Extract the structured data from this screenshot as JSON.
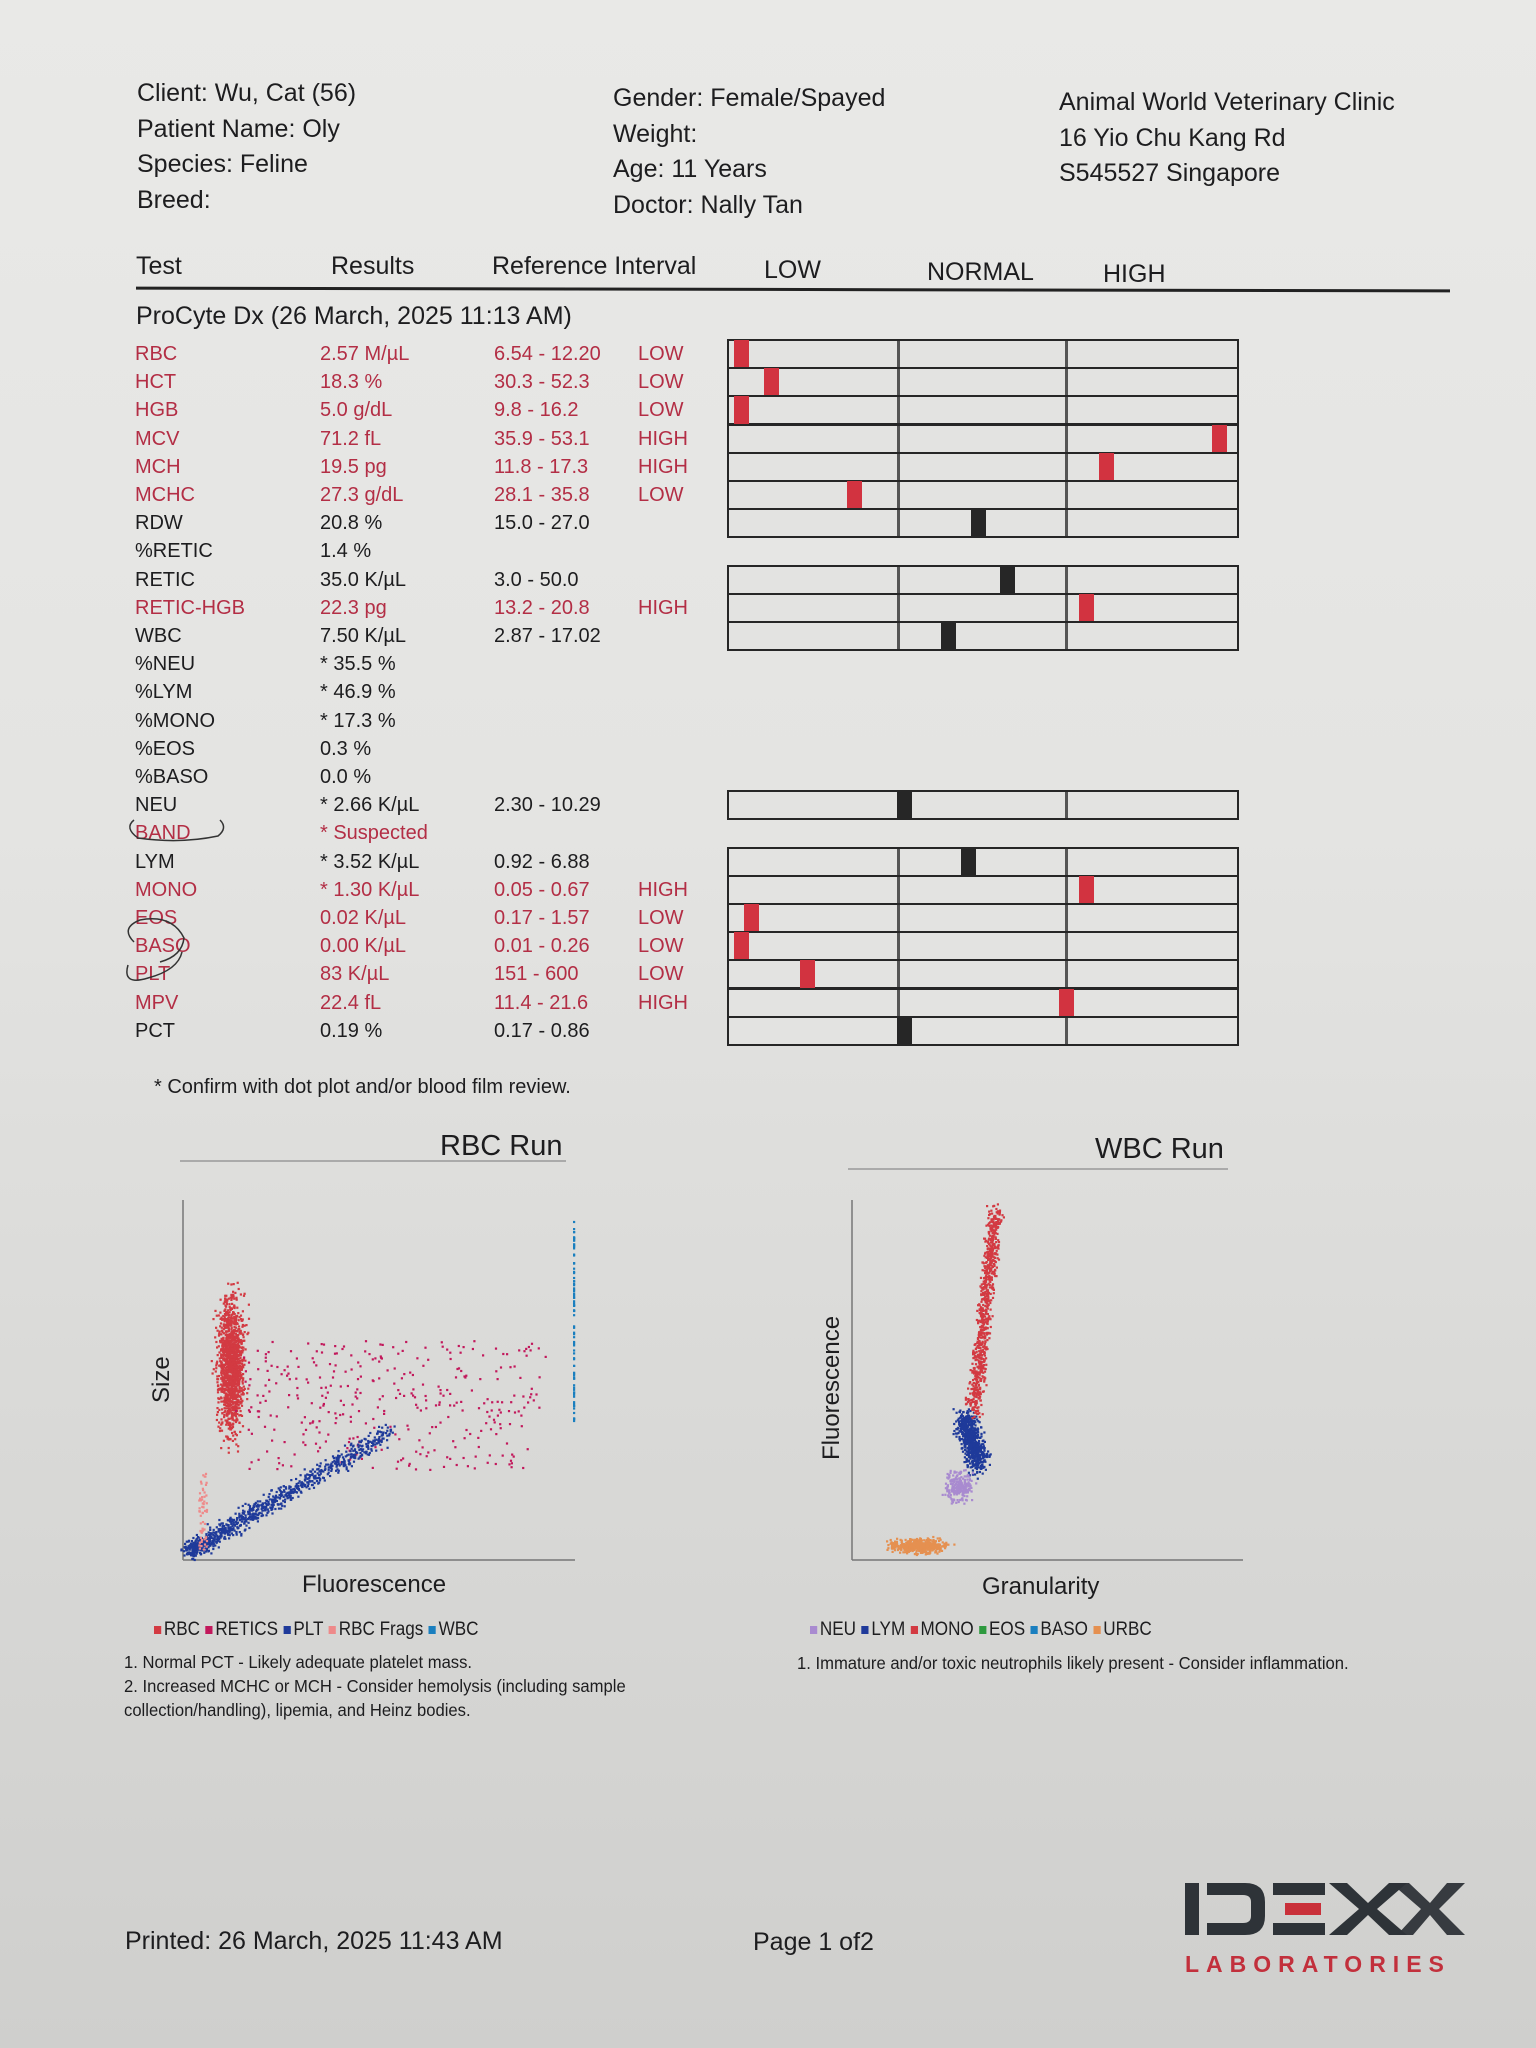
{
  "patient": {
    "client": "Client: Wu, Cat (56)",
    "patient_name": "Patient Name: Oly",
    "species": "Species: Feline",
    "breed": "Breed:",
    "gender": "Gender: Female/Spayed",
    "weight": "Weight:",
    "age": "Age: 11 Years",
    "doctor": "Doctor: Nally Tan"
  },
  "clinic": {
    "name": "Animal World Veterinary Clinic",
    "address1": "16 Yio Chu Kang Rd",
    "address2": "S545527 Singapore"
  },
  "table_header": {
    "test": "Test",
    "results": "Results",
    "reference": "Reference Interval",
    "low": "LOW",
    "normal": "NORMAL",
    "high": "HIGH"
  },
  "section_title": "ProCyte Dx (26 March, 2025 11:13 AM)",
  "colors": {
    "abnormal": "#b32e45",
    "marker_abnormal": "#d23340",
    "marker_normal": "#262626"
  },
  "rows": [
    {
      "test": "RBC",
      "result": "2.57 M/µL",
      "ref": "6.54 - 12.20",
      "flag": "LOW",
      "abnormal": true,
      "marker": 0.01
    },
    {
      "test": "HCT",
      "result": "18.3 %",
      "ref": "30.3 - 52.3",
      "flag": "LOW",
      "abnormal": true,
      "marker": 0.07
    },
    {
      "test": "HGB",
      "result": "5.0 g/dL",
      "ref": "9.8 - 16.2",
      "flag": "LOW",
      "abnormal": true,
      "marker": 0.01
    },
    {
      "test": "MCV",
      "result": "71.2 fL",
      "ref": "35.9 - 53.1",
      "flag": "HIGH",
      "abnormal": true,
      "marker": 0.98
    },
    {
      "test": "MCH",
      "result": "19.5 pg",
      "ref": "11.8 - 17.3",
      "flag": "HIGH",
      "abnormal": true,
      "marker": 0.75
    },
    {
      "test": "MCHC",
      "result": "27.3 g/dL",
      "ref": "28.1 - 35.8",
      "flag": "LOW",
      "abnormal": true,
      "marker": 0.24
    },
    {
      "test": "RDW",
      "result": "20.8 %",
      "ref": "15.0 - 27.0",
      "flag": "",
      "abnormal": false,
      "marker": 0.49
    },
    {
      "test": "%RETIC",
      "result": "1.4 %",
      "ref": "",
      "flag": "",
      "abnormal": false,
      "marker": null
    },
    {
      "test": "RETIC",
      "result": "35.0 K/µL",
      "ref": "3.0 - 50.0",
      "flag": "",
      "abnormal": false,
      "marker": 0.55
    },
    {
      "test": "RETIC-HGB",
      "result": "22.3 pg",
      "ref": "13.2 - 20.8",
      "flag": "HIGH",
      "abnormal": true,
      "marker": 0.71
    },
    {
      "test": "WBC",
      "result": "7.50 K/µL",
      "ref": "2.87 - 17.02",
      "flag": "",
      "abnormal": false,
      "marker": 0.43
    },
    {
      "test": "%NEU",
      "result": "* 35.5 %",
      "ref": "",
      "flag": "",
      "abnormal": false,
      "marker": null
    },
    {
      "test": "%LYM",
      "result": "* 46.9 %",
      "ref": "",
      "flag": "",
      "abnormal": false,
      "marker": null
    },
    {
      "test": "%MONO",
      "result": "* 17.3 %",
      "ref": "",
      "flag": "",
      "abnormal": false,
      "marker": null
    },
    {
      "test": "%EOS",
      "result": "0.3 %",
      "ref": "",
      "flag": "",
      "abnormal": false,
      "marker": null
    },
    {
      "test": "%BASO",
      "result": "0.0 %",
      "ref": "",
      "flag": "",
      "abnormal": false,
      "marker": null
    },
    {
      "test": "NEU",
      "result": "* 2.66 K/µL",
      "ref": "2.30 - 10.29",
      "flag": "",
      "abnormal": false,
      "marker": 0.34
    },
    {
      "test": "BAND",
      "result": "* Suspected",
      "ref": "",
      "flag": "",
      "abnormal": true,
      "marker": null
    },
    {
      "test": "LYM",
      "result": "* 3.52 K/µL",
      "ref": "0.92 - 6.88",
      "flag": "",
      "abnormal": false,
      "marker": 0.47
    },
    {
      "test": "MONO",
      "result": "* 1.30 K/µL",
      "ref": "0.05 - 0.67",
      "flag": "HIGH",
      "abnormal": true,
      "marker": 0.71
    },
    {
      "test": "EOS",
      "result": "0.02 K/µL",
      "ref": "0.17 - 1.57",
      "flag": "LOW",
      "abnormal": true,
      "marker": 0.03
    },
    {
      "test": "BASO",
      "result": "0.00 K/µL",
      "ref": "0.01 - 0.26",
      "flag": "LOW",
      "abnormal": true,
      "marker": 0.01
    },
    {
      "test": "PLT",
      "result": "83 K/µL",
      "ref": "151 - 600",
      "flag": "LOW",
      "abnormal": true,
      "marker": 0.145
    },
    {
      "test": "MPV",
      "result": "22.4 fL",
      "ref": "11.4 - 21.6",
      "flag": "HIGH",
      "abnormal": true,
      "marker": 0.67
    },
    {
      "test": "PCT",
      "result": "0.19 %",
      "ref": "0.17 - 0.86",
      "flag": "",
      "abnormal": false,
      "marker": 0.34
    }
  ],
  "footnote": "* Confirm with dot plot and/or blood film review.",
  "rbc_run": {
    "title": "RBC Run",
    "xlabel": "Fluorescence",
    "ylabel": "Size",
    "legend": [
      {
        "label": "RBC",
        "color": "#d33a42"
      },
      {
        "label": "RETICS",
        "color": "#c2185b"
      },
      {
        "label": "PLT",
        "color": "#1f3a9a"
      },
      {
        "label": "RBC Frags",
        "color": "#ee8a8a"
      },
      {
        "label": "WBC",
        "color": "#1a7fbf"
      }
    ],
    "notes": [
      "1. Normal PCT - Likely adequate platelet mass.",
      "2. Increased MCHC or MCH - Consider hemolysis (including sample",
      "collection/handling), lipemia, and Heinz bodies."
    ]
  },
  "wbc_run": {
    "title": "WBC Run",
    "xlabel": "Granularity",
    "ylabel": "Fluorescence",
    "legend": [
      {
        "label": "NEU",
        "color": "#a98bd0"
      },
      {
        "label": "LYM",
        "color": "#1f3a9a"
      },
      {
        "label": "MONO",
        "color": "#d33a42"
      },
      {
        "label": "EOS",
        "color": "#2e9a3e"
      },
      {
        "label": "BASO",
        "color": "#1a7fbf"
      },
      {
        "label": "URBC",
        "color": "#e59050"
      }
    ],
    "notes": [
      "1. Immature and/or toxic neutrophils likely present - Consider inflammation."
    ]
  },
  "footer": {
    "printed": "Printed: 26 March, 2025 11:43 AM",
    "page": "Page 1 of2"
  },
  "logo": {
    "brand": "IDEXX",
    "sub": "LABORATORIES"
  }
}
